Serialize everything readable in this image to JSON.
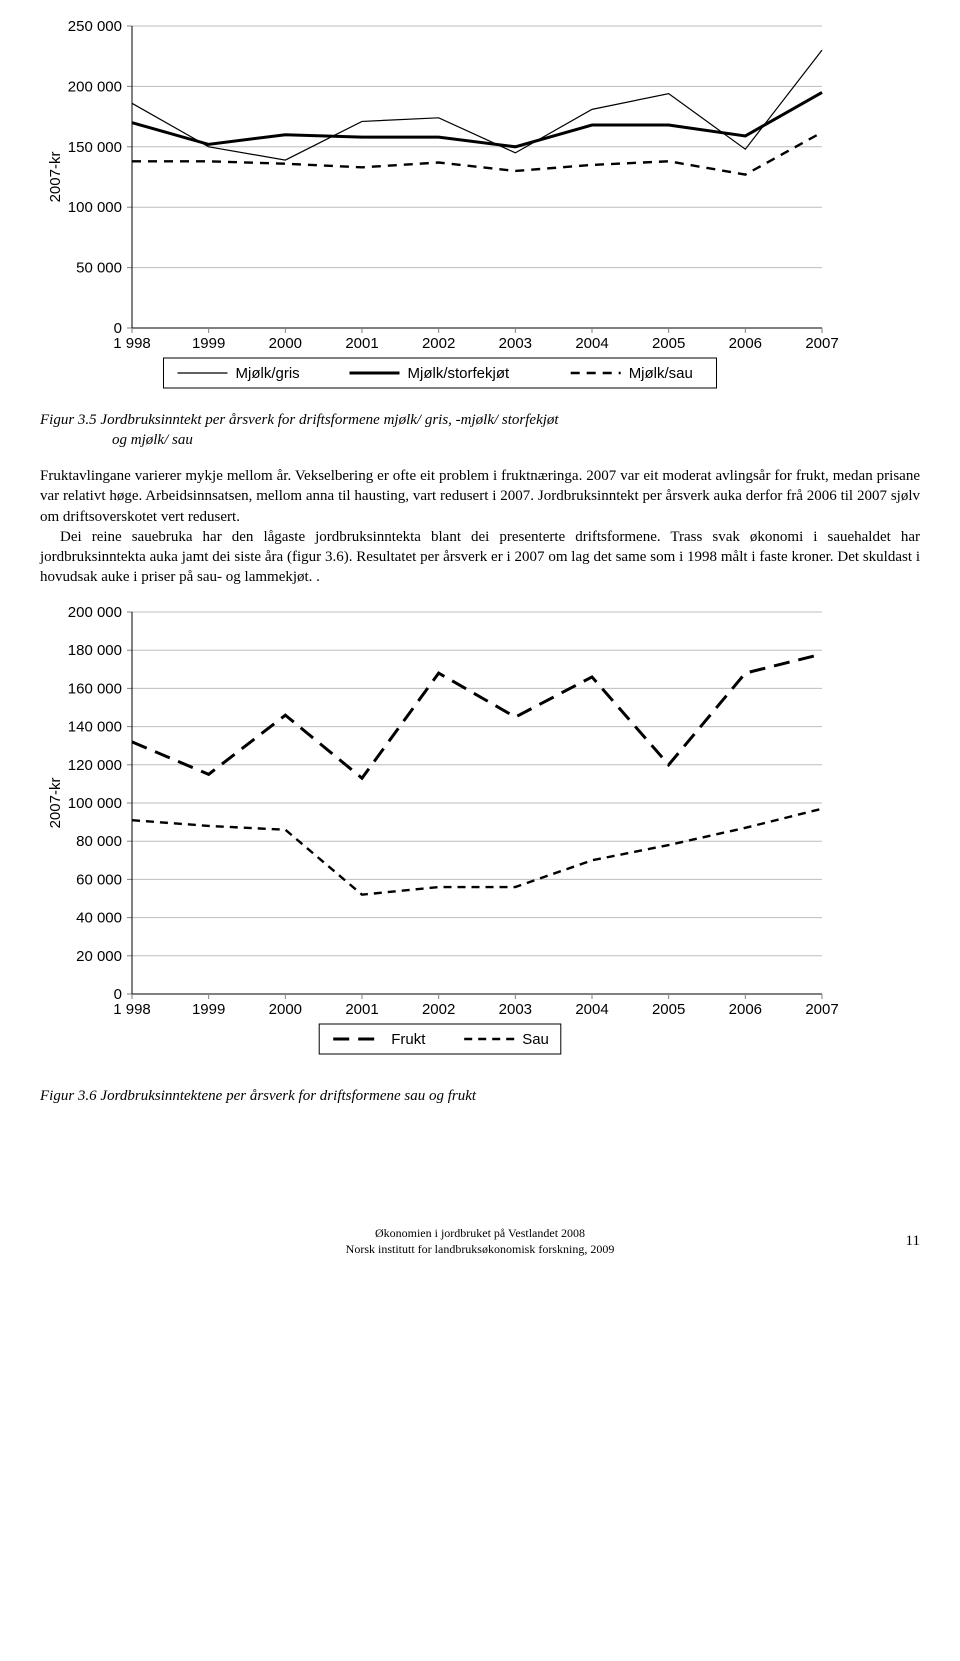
{
  "chart1": {
    "type": "line",
    "years": [
      "1 998",
      "1999",
      "2000",
      "2001",
      "2002",
      "2003",
      "2004",
      "2005",
      "2006",
      "2007"
    ],
    "ylabel": "2007-kr",
    "ylim": [
      0,
      250000
    ],
    "ytick_step": 50000,
    "yticks_labels": [
      "0",
      "50 000",
      "100 000",
      "150 000",
      "200 000",
      "250 000"
    ],
    "legend_box": true,
    "series": [
      {
        "name": "Mjølk/gris",
        "style": "thin-solid",
        "color": "#000000",
        "width": 1.2,
        "dash": "",
        "values": [
          186000,
          150000,
          139000,
          171000,
          174000,
          145000,
          181000,
          194000,
          148000,
          230000
        ]
      },
      {
        "name": "Mjølk/storfekjøt",
        "style": "thick-solid",
        "color": "#000000",
        "width": 3.0,
        "dash": "",
        "values": [
          170000,
          152000,
          160000,
          158000,
          158000,
          150000,
          168000,
          168000,
          159000,
          195000
        ]
      },
      {
        "name": "Mjølk/sau",
        "style": "dashed",
        "color": "#000000",
        "width": 2.4,
        "dash": "9 7",
        "values": [
          138000,
          138000,
          136000,
          133000,
          137000,
          130000,
          135000,
          138000,
          127000,
          162000
        ]
      }
    ],
    "background_color": "#ffffff",
    "grid_color": "#bdbdbd"
  },
  "caption1_prefix": "Figur 3.5 ",
  "caption1_line1": "Jordbruksinntekt per årsverk for driftsformene mjølk/ gris, -mjølk/ storfekjøt",
  "caption1_line2": "og mjølk/ sau",
  "body": {
    "p1": "Fruktavlingane varierer mykje mellom år. Vekselbering er ofte eit problem i fruktnæringa. 2007 var eit moderat avlingsår for frukt, medan prisane var relativt høge. Arbeidsinnsatsen, mellom anna til hausting, vart redusert i 2007. Jordbruksinntekt per årsverk auka derfor frå 2006 til 2007 sjølv om driftsoverskotet vert redusert.",
    "p2": "Dei reine sauebruka har den lågaste jordbruksinntekta blant dei presenterte driftsformene. Trass svak økonomi i sauehaldet har jordbruksinntekta auka jamt dei siste åra (figur 3.6). Resultatet per årsverk er i 2007 om lag det same som i 1998 målt i faste kroner. Det skuldast i hovudsak auke i priser på sau- og lammekjøt. ."
  },
  "chart2": {
    "type": "line",
    "years": [
      "1 998",
      "1999",
      "2000",
      "2001",
      "2002",
      "2003",
      "2004",
      "2005",
      "2006",
      "2007"
    ],
    "ylabel": "2007-kr",
    "ylim": [
      0,
      200000
    ],
    "ytick_step": 20000,
    "yticks_labels": [
      "0",
      "20 000",
      "40 000",
      "60 000",
      "80 000",
      "100 000",
      "120 000",
      "140 000",
      "160 000",
      "180 000",
      "200 000"
    ],
    "legend_box": true,
    "series": [
      {
        "name": "Frukt",
        "style": "long-dash",
        "color": "#000000",
        "width": 3.0,
        "dash": "16 9",
        "values": [
          132000,
          115000,
          146000,
          113000,
          168000,
          145000,
          166000,
          120000,
          168000,
          178000
        ]
      },
      {
        "name": "Sau",
        "style": "dashed",
        "color": "#000000",
        "width": 2.4,
        "dash": "8 6",
        "values": [
          91000,
          88000,
          86000,
          52000,
          56000,
          56000,
          70000,
          78000,
          87000,
          97000
        ]
      }
    ],
    "background_color": "#ffffff",
    "grid_color": "#bdbdbd"
  },
  "caption2_prefix": "Figur 3.6 ",
  "caption2_text": "Jordbruksinntektene per årsverk for driftsformene sau og frukt",
  "footer": {
    "line1": "Økonomien i jordbruket på Vestlandet 2008",
    "line2": "Norsk institutt for landbruksøkonomisk forskning, 2009",
    "page": "11"
  }
}
